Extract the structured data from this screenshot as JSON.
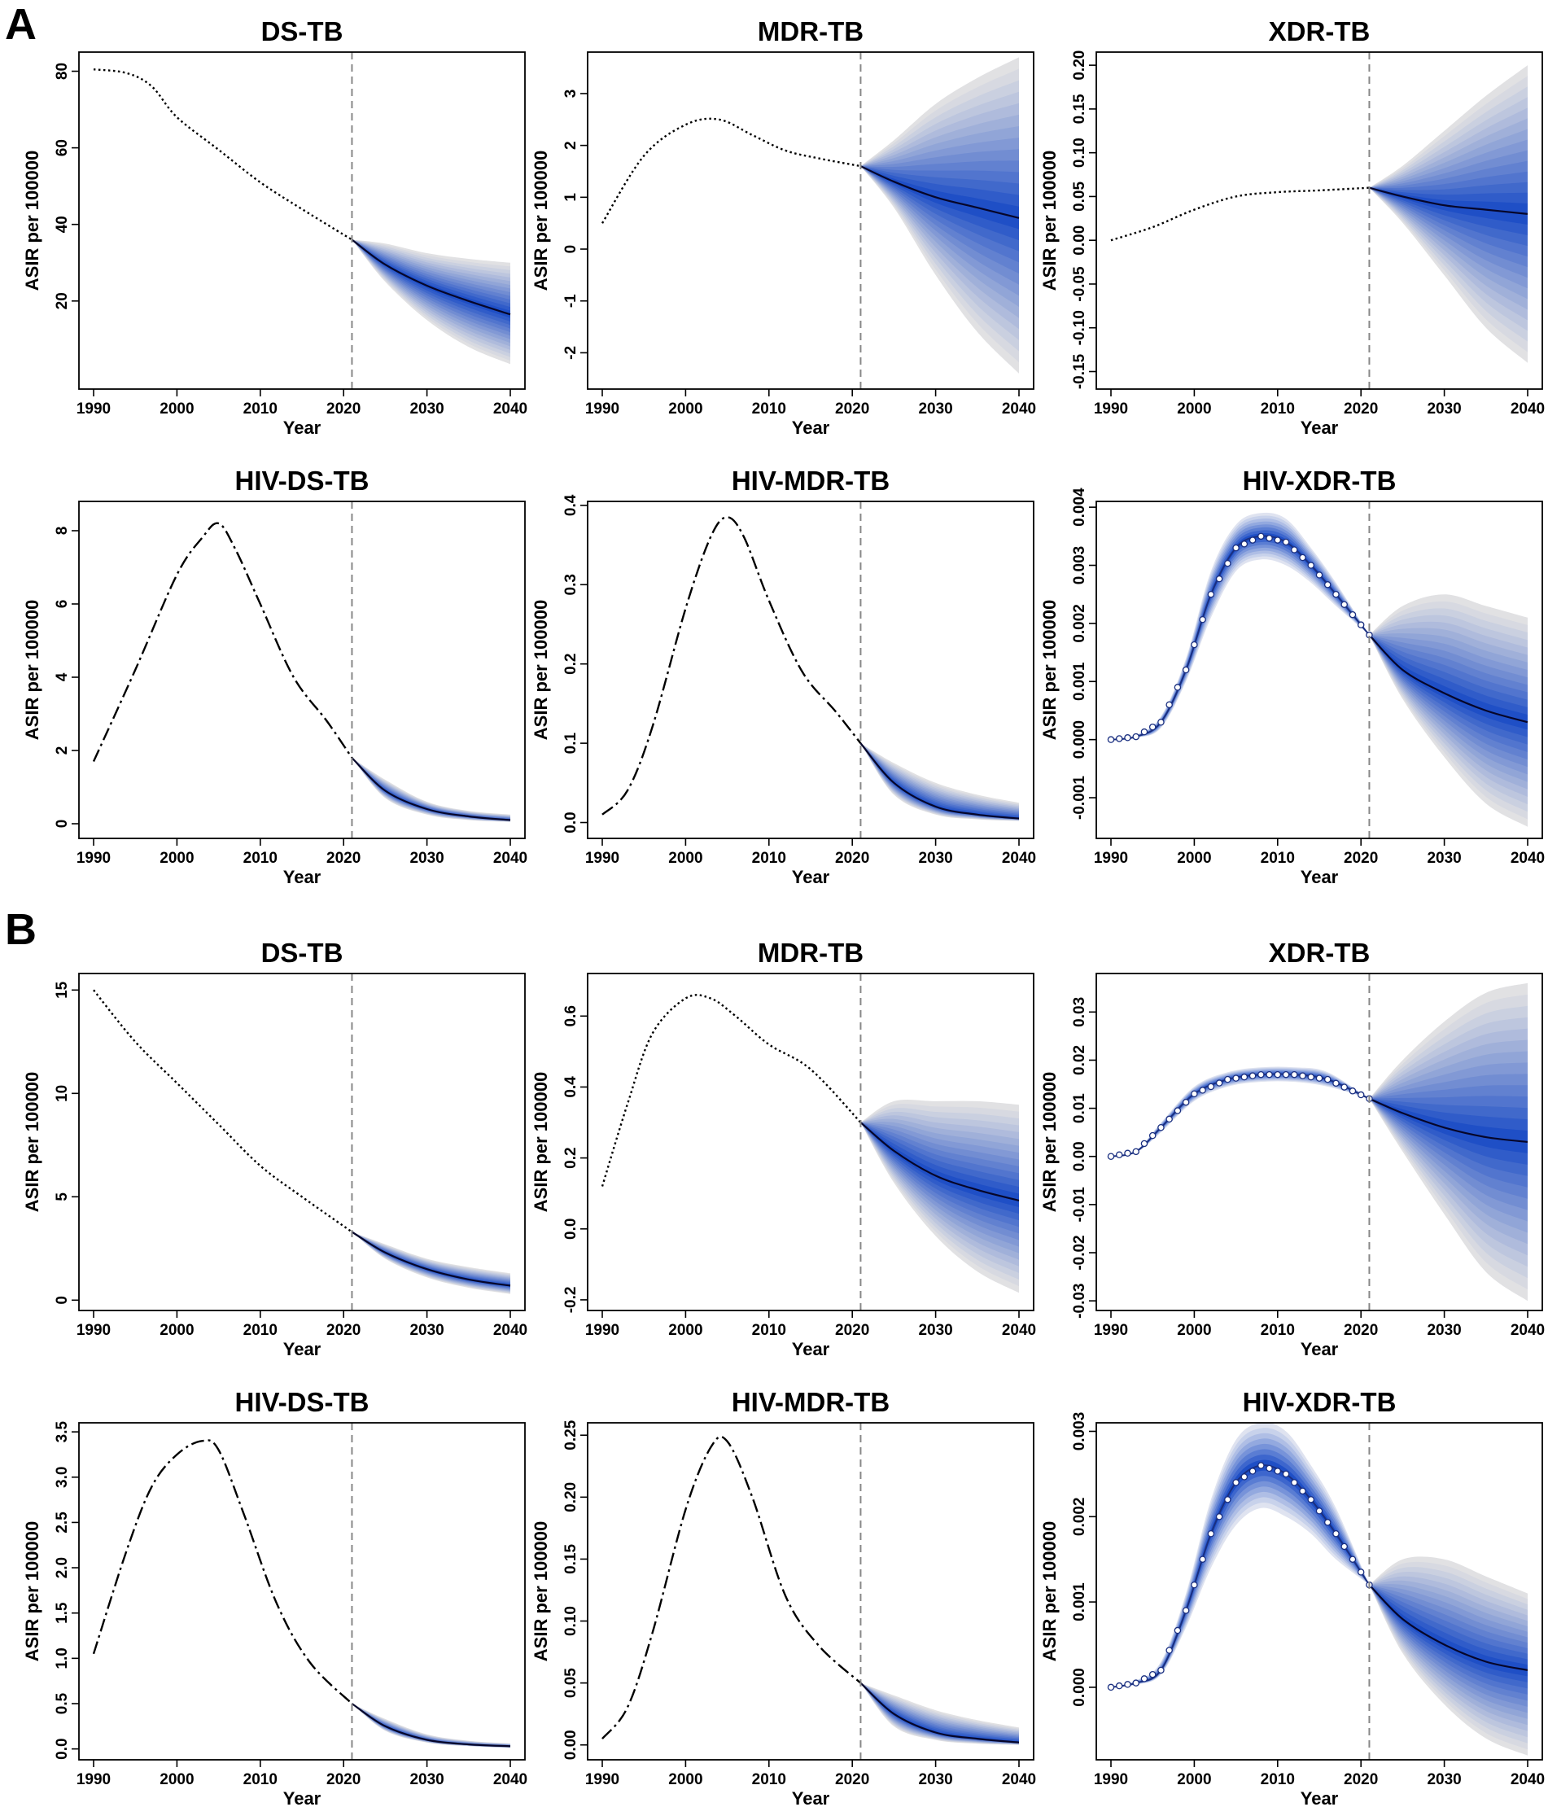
{
  "panels": [
    {
      "label": "A"
    },
    {
      "label": "B"
    }
  ],
  "colors": {
    "band_outer": "#e1e1e3",
    "band_inner": "#1f4fc6",
    "median_line": "#06062a",
    "history_line": "#000000",
    "divider": "#888888",
    "marker_stroke": "#1a2f80"
  },
  "chart_data": [
    {
      "panel": "A",
      "type": "line",
      "title": "DS-TB",
      "xlabel": "Year",
      "ylabel": "ASIR per 100000",
      "xlim": [
        1990,
        2040
      ],
      "xticks": [
        1990,
        2000,
        2010,
        2020,
        2030,
        2040
      ],
      "ylim": [
        -3,
        85
      ],
      "yticks": [
        20,
        40,
        60,
        80
      ],
      "ytick_labels": [
        "20",
        "40",
        "60",
        "80"
      ],
      "split_year": 2021,
      "marker_style": "dots",
      "observed": {
        "years": [
          1990,
          1994,
          1997,
          2000,
          2005,
          2010,
          2015,
          2021
        ],
        "values": [
          80.5,
          79.5,
          76,
          68,
          59.5,
          51,
          44,
          36
        ]
      },
      "forecast": {
        "years": [
          2021,
          2025,
          2030,
          2035,
          2040
        ],
        "median": [
          36,
          29.5,
          24,
          20,
          16.5
        ],
        "lower": [
          36,
          25,
          15,
          8,
          3.5
        ],
        "upper": [
          36,
          35,
          32.5,
          31,
          30
        ]
      }
    },
    {
      "panel": "A",
      "type": "line",
      "title": "MDR-TB",
      "xlabel": "Year",
      "ylabel": "ASIR per 100000",
      "xlim": [
        1990,
        2040
      ],
      "xticks": [
        1990,
        2000,
        2010,
        2020,
        2030,
        2040
      ],
      "ylim": [
        -2.7,
        3.8
      ],
      "yticks": [
        -2,
        -1,
        0,
        1,
        2,
        3
      ],
      "ytick_labels": [
        "-2",
        "-1",
        "0",
        "1",
        "2",
        "3"
      ],
      "split_year": 2021,
      "marker_style": "dots",
      "observed": {
        "years": [
          1990,
          1995,
          2000,
          2004,
          2008,
          2012,
          2016,
          2021
        ],
        "values": [
          0.5,
          1.8,
          2.4,
          2.5,
          2.2,
          1.9,
          1.75,
          1.6
        ]
      },
      "forecast": {
        "years": [
          2021,
          2025,
          2030,
          2035,
          2040
        ],
        "median": [
          1.6,
          1.3,
          1.0,
          0.8,
          0.6
        ],
        "lower": [
          1.6,
          0.8,
          -0.5,
          -1.6,
          -2.4
        ],
        "upper": [
          1.6,
          2.1,
          2.8,
          3.3,
          3.7
        ]
      }
    },
    {
      "panel": "A",
      "type": "line",
      "title": "XDR-TB",
      "xlabel": "Year",
      "ylabel": "ASIR per 100000",
      "xlim": [
        1990,
        2040
      ],
      "xticks": [
        1990,
        2000,
        2010,
        2020,
        2030,
        2040
      ],
      "ylim": [
        -0.17,
        0.215
      ],
      "yticks": [
        -0.15,
        -0.1,
        -0.05,
        0,
        0.05,
        0.1,
        0.15,
        0.2
      ],
      "ytick_labels": [
        "-0.15",
        "-0.10",
        "-0.05",
        "0.00",
        "0.05",
        "0.10",
        "0.15",
        "0.20"
      ],
      "split_year": 2021,
      "marker_style": "dots",
      "observed": {
        "years": [
          1990,
          1995,
          2000,
          2005,
          2010,
          2015,
          2021
        ],
        "values": [
          0.0,
          0.015,
          0.035,
          0.05,
          0.055,
          0.057,
          0.06
        ]
      },
      "forecast": {
        "years": [
          2021,
          2025,
          2030,
          2035,
          2040
        ],
        "median": [
          0.06,
          0.05,
          0.04,
          0.035,
          0.03
        ],
        "lower": [
          0.06,
          0.02,
          -0.04,
          -0.1,
          -0.14
        ],
        "upper": [
          0.06,
          0.085,
          0.125,
          0.165,
          0.2
        ]
      }
    },
    {
      "panel": "A",
      "type": "line",
      "title": "HIV-DS-TB",
      "xlabel": "Year",
      "ylabel": "ASIR per 100000",
      "xlim": [
        1990,
        2040
      ],
      "xticks": [
        1990,
        2000,
        2010,
        2020,
        2030,
        2040
      ],
      "ylim": [
        -0.4,
        8.8
      ],
      "yticks": [
        0,
        2,
        4,
        6,
        8
      ],
      "ytick_labels": [
        "0",
        "2",
        "4",
        "6",
        "8"
      ],
      "split_year": 2021,
      "marker_style": "dashes",
      "observed": {
        "years": [
          1990,
          1995,
          2000,
          2003,
          2005,
          2007,
          2010,
          2014,
          2018,
          2021
        ],
        "values": [
          1.7,
          4.2,
          6.8,
          7.8,
          8.2,
          7.5,
          6.0,
          4.0,
          2.8,
          1.8
        ]
      },
      "forecast": {
        "years": [
          2021,
          2025,
          2030,
          2035,
          2040
        ],
        "median": [
          1.8,
          0.9,
          0.4,
          0.2,
          0.1
        ],
        "lower": [
          1.8,
          0.7,
          0.25,
          0.1,
          0.05
        ],
        "upper": [
          1.8,
          1.2,
          0.6,
          0.35,
          0.25
        ]
      }
    },
    {
      "panel": "A",
      "type": "line",
      "title": "HIV-MDR-TB",
      "xlabel": "Year",
      "ylabel": "ASIR per 100000",
      "xlim": [
        1990,
        2040
      ],
      "xticks": [
        1990,
        2000,
        2010,
        2020,
        2030,
        2040
      ],
      "ylim": [
        -0.02,
        0.405
      ],
      "yticks": [
        0,
        0.1,
        0.2,
        0.3,
        0.4
      ],
      "ytick_labels": [
        "0.0",
        "0.1",
        "0.2",
        "0.3",
        "0.4"
      ],
      "split_year": 2021,
      "marker_style": "dashes",
      "observed": {
        "years": [
          1990,
          1993,
          1996,
          2000,
          2003,
          2005,
          2007,
          2010,
          2014,
          2018,
          2021
        ],
        "values": [
          0.01,
          0.04,
          0.12,
          0.27,
          0.36,
          0.385,
          0.36,
          0.28,
          0.19,
          0.14,
          0.1
        ]
      },
      "forecast": {
        "years": [
          2021,
          2025,
          2030,
          2035,
          2040
        ],
        "median": [
          0.1,
          0.05,
          0.02,
          0.01,
          0.005
        ],
        "lower": [
          0.1,
          0.035,
          0.01,
          0.004,
          0.002
        ],
        "upper": [
          0.1,
          0.075,
          0.05,
          0.035,
          0.025
        ]
      }
    },
    {
      "panel": "A",
      "type": "line",
      "title": "HIV-XDR-TB",
      "xlabel": "Year",
      "ylabel": "ASIR per 100000",
      "xlim": [
        1990,
        2040
      ],
      "xticks": [
        1990,
        2000,
        2010,
        2020,
        2030,
        2040
      ],
      "ylim": [
        -0.0017,
        0.0041
      ],
      "yticks": [
        -0.001,
        0,
        0.001,
        0.002,
        0.003,
        0.004
      ],
      "ytick_labels": [
        "-0.001",
        "0.000",
        "0.001",
        "0.002",
        "0.003",
        "0.004"
      ],
      "split_year": 2021,
      "marker_style": "circles",
      "observed": {
        "years": [
          1990,
          1993,
          1996,
          1999,
          2002,
          2005,
          2008,
          2011,
          2014,
          2017,
          2021
        ],
        "values": [
          0.0,
          5e-05,
          0.0003,
          0.0012,
          0.0025,
          0.0033,
          0.0035,
          0.0034,
          0.003,
          0.0025,
          0.0018
        ]
      },
      "forecast": {
        "years": [
          2021,
          2025,
          2030,
          2035,
          2040
        ],
        "median": [
          0.0018,
          0.0012,
          0.0008,
          0.0005,
          0.0003
        ],
        "lower": [
          0.0018,
          0.0007,
          -0.0003,
          -0.0011,
          -0.0015
        ],
        "upper": [
          0.0018,
          0.0023,
          0.0025,
          0.0023,
          0.0021
        ]
      },
      "history_band": {
        "lower": [
          0.0,
          3e-05,
          0.0002,
          0.001,
          0.0021,
          0.0029,
          0.0031,
          0.003,
          0.0027,
          0.0023,
          0.0018
        ],
        "upper": [
          0.0,
          8e-05,
          0.0004,
          0.0014,
          0.0029,
          0.0037,
          0.0039,
          0.0038,
          0.0033,
          0.0027,
          0.0018
        ]
      }
    },
    {
      "panel": "B",
      "type": "line",
      "title": "DS-TB",
      "xlabel": "Year",
      "ylabel": "ASIR per 100000",
      "xlim": [
        1990,
        2040
      ],
      "xticks": [
        1990,
        2000,
        2010,
        2020,
        2030,
        2040
      ],
      "ylim": [
        -0.5,
        15.8
      ],
      "yticks": [
        0,
        5,
        10,
        15
      ],
      "ytick_labels": [
        "0",
        "5",
        "10",
        "15"
      ],
      "split_year": 2021,
      "marker_style": "dots",
      "observed": {
        "years": [
          1990,
          1995,
          2000,
          2005,
          2010,
          2015,
          2021
        ],
        "values": [
          15.0,
          12.5,
          10.5,
          8.5,
          6.5,
          5.0,
          3.3
        ]
      },
      "forecast": {
        "years": [
          2021,
          2025,
          2030,
          2035,
          2040
        ],
        "median": [
          3.3,
          2.3,
          1.5,
          1.0,
          0.7
        ],
        "lower": [
          3.3,
          2.0,
          1.1,
          0.6,
          0.3
        ],
        "upper": [
          3.3,
          2.7,
          2.0,
          1.6,
          1.3
        ]
      }
    },
    {
      "panel": "B",
      "type": "line",
      "title": "MDR-TB",
      "xlabel": "Year",
      "ylabel": "ASIR per 100000",
      "xlim": [
        1990,
        2040
      ],
      "xticks": [
        1990,
        2000,
        2010,
        2020,
        2030,
        2040
      ],
      "ylim": [
        -0.23,
        0.72
      ],
      "yticks": [
        -0.2,
        0,
        0.2,
        0.4,
        0.6
      ],
      "ytick_labels": [
        "-0.2",
        "0.0",
        "0.2",
        "0.4",
        "0.6"
      ],
      "split_year": 2021,
      "marker_style": "dots",
      "observed": {
        "years": [
          1990,
          1993,
          1996,
          2000,
          2003,
          2006,
          2010,
          2015,
          2021
        ],
        "values": [
          0.12,
          0.35,
          0.55,
          0.65,
          0.65,
          0.6,
          0.52,
          0.45,
          0.3
        ]
      },
      "forecast": {
        "years": [
          2021,
          2025,
          2030,
          2035,
          2040
        ],
        "median": [
          0.3,
          0.22,
          0.15,
          0.11,
          0.08
        ],
        "lower": [
          0.3,
          0.13,
          -0.02,
          -0.12,
          -0.18
        ],
        "upper": [
          0.3,
          0.36,
          0.36,
          0.36,
          0.35
        ]
      }
    },
    {
      "panel": "B",
      "type": "line",
      "title": "XDR-TB",
      "xlabel": "Year",
      "ylabel": "ASIR per 100000",
      "xlim": [
        1990,
        2040
      ],
      "xticks": [
        1990,
        2000,
        2010,
        2020,
        2030,
        2040
      ],
      "ylim": [
        -0.032,
        0.038
      ],
      "yticks": [
        -0.03,
        -0.02,
        -0.01,
        0,
        0.01,
        0.02,
        0.03
      ],
      "ytick_labels": [
        "-0.03",
        "-0.02",
        "-0.01",
        "0.00",
        "0.01",
        "0.02",
        "0.03"
      ],
      "split_year": 2021,
      "marker_style": "circles",
      "observed": {
        "years": [
          1990,
          1993,
          1996,
          2000,
          2004,
          2008,
          2012,
          2016,
          2021
        ],
        "values": [
          0.0,
          0.001,
          0.006,
          0.013,
          0.016,
          0.017,
          0.017,
          0.016,
          0.012
        ]
      },
      "forecast": {
        "years": [
          2021,
          2025,
          2030,
          2035,
          2040
        ],
        "median": [
          0.012,
          0.009,
          0.006,
          0.004,
          0.003
        ],
        "lower": [
          0.012,
          0.001,
          -0.012,
          -0.024,
          -0.03
        ],
        "upper": [
          0.012,
          0.02,
          0.028,
          0.034,
          0.036
        ]
      },
      "history_band": {
        "lower": [
          0.0,
          0.0008,
          0.005,
          0.0115,
          0.0145,
          0.0155,
          0.0155,
          0.0145,
          0.012
        ],
        "upper": [
          0.0,
          0.0012,
          0.007,
          0.0145,
          0.0175,
          0.0185,
          0.0185,
          0.0175,
          0.012
        ]
      }
    },
    {
      "panel": "B",
      "type": "line",
      "title": "HIV-DS-TB",
      "xlabel": "Year",
      "ylabel": "ASIR per 100000",
      "xlim": [
        1990,
        2040
      ],
      "xticks": [
        1990,
        2000,
        2010,
        2020,
        2030,
        2040
      ],
      "ylim": [
        -0.12,
        3.6
      ],
      "yticks": [
        0,
        0.5,
        1.0,
        1.5,
        2.0,
        2.5,
        3.0,
        3.5
      ],
      "ytick_labels": [
        "0.0",
        "0.5",
        "1.0",
        "1.5",
        "2.0",
        "2.5",
        "3.0",
        "3.5"
      ],
      "split_year": 2021,
      "marker_style": "dashes",
      "observed": {
        "years": [
          1990,
          1994,
          1997,
          2000,
          2003,
          2005,
          2008,
          2012,
          2016,
          2021
        ],
        "values": [
          1.05,
          2.2,
          2.9,
          3.25,
          3.4,
          3.3,
          2.6,
          1.6,
          0.95,
          0.5
        ]
      },
      "forecast": {
        "years": [
          2021,
          2025,
          2030,
          2035,
          2040
        ],
        "median": [
          0.5,
          0.25,
          0.1,
          0.05,
          0.03
        ],
        "lower": [
          0.5,
          0.2,
          0.07,
          0.03,
          0.01
        ],
        "upper": [
          0.5,
          0.33,
          0.16,
          0.09,
          0.06
        ]
      }
    },
    {
      "panel": "B",
      "type": "line",
      "title": "HIV-MDR-TB",
      "xlabel": "Year",
      "ylabel": "ASIR per 100000",
      "xlim": [
        1990,
        2040
      ],
      "xticks": [
        1990,
        2000,
        2010,
        2020,
        2030,
        2040
      ],
      "ylim": [
        -0.012,
        0.26
      ],
      "yticks": [
        0,
        0.05,
        0.1,
        0.15,
        0.2,
        0.25
      ],
      "ytick_labels": [
        "0.00",
        "0.05",
        "0.10",
        "0.15",
        "0.20",
        "0.25"
      ],
      "split_year": 2021,
      "marker_style": "dashes",
      "observed": {
        "years": [
          1990,
          1993,
          1996,
          2000,
          2003,
          2005,
          2008,
          2012,
          2016,
          2021
        ],
        "values": [
          0.005,
          0.03,
          0.09,
          0.19,
          0.24,
          0.245,
          0.2,
          0.12,
          0.08,
          0.05
        ]
      },
      "forecast": {
        "years": [
          2021,
          2025,
          2030,
          2035,
          2040
        ],
        "median": [
          0.05,
          0.025,
          0.01,
          0.005,
          0.002
        ],
        "lower": [
          0.05,
          0.015,
          0.004,
          0.001,
          0.0
        ],
        "upper": [
          0.05,
          0.04,
          0.028,
          0.02,
          0.014
        ]
      }
    },
    {
      "panel": "B",
      "type": "line",
      "title": "HIV-XDR-TB",
      "xlabel": "Year",
      "ylabel": "ASIR per 100000",
      "xlim": [
        1990,
        2040
      ],
      "xticks": [
        1990,
        2000,
        2010,
        2020,
        2030,
        2040
      ],
      "ylim": [
        -0.00085,
        0.0031
      ],
      "yticks": [
        0,
        0.001,
        0.002,
        0.003
      ],
      "ytick_labels": [
        "0.000",
        "0.001",
        "0.002",
        "0.003"
      ],
      "split_year": 2021,
      "marker_style": "circles",
      "observed": {
        "years": [
          1990,
          1993,
          1996,
          1999,
          2002,
          2005,
          2008,
          2011,
          2014,
          2017,
          2021
        ],
        "values": [
          0.0,
          5e-05,
          0.0002,
          0.0009,
          0.0018,
          0.0024,
          0.0026,
          0.0025,
          0.0022,
          0.0018,
          0.0012
        ]
      },
      "forecast": {
        "years": [
          2021,
          2025,
          2030,
          2035,
          2040
        ],
        "median": [
          0.0012,
          0.0008,
          0.0005,
          0.0003,
          0.0002
        ],
        "lower": [
          0.0012,
          0.0004,
          -0.0002,
          -0.0006,
          -0.0008
        ],
        "upper": [
          0.0012,
          0.0015,
          0.0015,
          0.0013,
          0.0011
        ]
      },
      "history_band": {
        "lower": [
          0.0,
          3e-05,
          0.00015,
          0.0007,
          0.0014,
          0.0019,
          0.0021,
          0.002,
          0.0018,
          0.0015,
          0.0012
        ],
        "upper": [
          0.0,
          8e-05,
          0.0003,
          0.0011,
          0.0022,
          0.0029,
          0.0031,
          0.003,
          0.0026,
          0.0021,
          0.0012
        ]
      }
    }
  ]
}
